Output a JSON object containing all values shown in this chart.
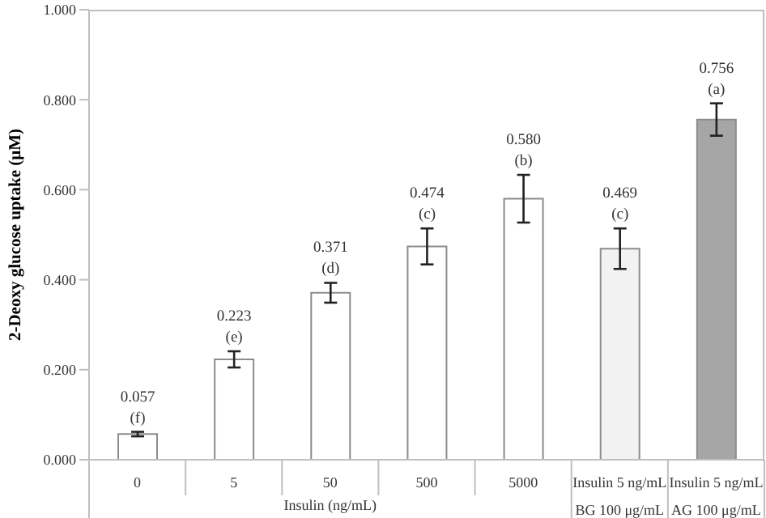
{
  "chart_data": {
    "type": "bar",
    "ylabel": "2-Deoxy glucose uptake (μM)",
    "xlabel": "Insulin (ng/mL)",
    "categories": [
      "0",
      "5",
      "50",
      "500",
      "5000",
      "Insulin 5 ng/mL\nBG 100 μg/mL",
      "Insulin 5 ng/mL\nAG 100 μg/mL"
    ],
    "values": [
      0.057,
      0.223,
      0.371,
      0.474,
      0.58,
      0.469,
      0.756
    ],
    "colors": [
      "#ffffff",
      "#ffffff",
      "#ffffff",
      "#ffffff",
      "#ffffff",
      "#f2f2f2",
      "#a6a6a6"
    ],
    "errors": [
      0.005,
      0.018,
      0.022,
      0.04,
      0.053,
      0.045,
      0.036
    ],
    "value_labels": [
      "0.057\n(f)",
      "0.223\n(e)",
      "0.371\n(d)",
      "0.474\n(c)",
      "0.580\n(b)",
      "0.469\n(c)",
      "0.756\n(a)"
    ],
    "ylim": [
      0,
      1
    ],
    "yticks": [
      {
        "value": 0,
        "label": "0.000"
      },
      {
        "value": 0.2,
        "label": "0.200"
      },
      {
        "value": 0.4,
        "label": "0.400"
      },
      {
        "value": 0.6,
        "label": "0.600"
      },
      {
        "value": 0.8,
        "label": "0.800"
      },
      {
        "value": 1,
        "label": "1.000"
      }
    ],
    "grid": false,
    "legend": false
  }
}
